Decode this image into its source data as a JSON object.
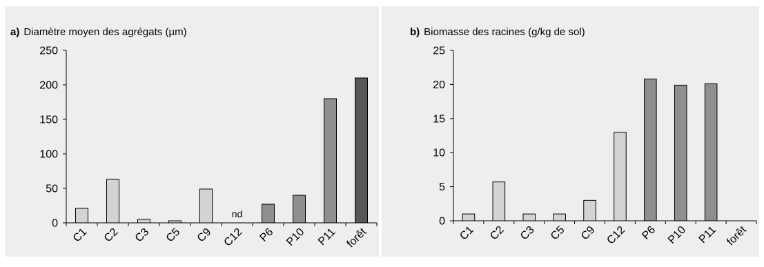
{
  "colors": {
    "panel_background": "#eeeeee",
    "bar_light": "#d3d3d3",
    "bar_medium": "#8f8f8f",
    "bar_dark": "#585858",
    "axis": "#000000"
  },
  "chart_data": [
    {
      "type": "bar",
      "panel_label": "a)",
      "title": "Diamètre moyen des agrégats (µm)",
      "categories": [
        "C1",
        "C2",
        "C3",
        "C5",
        "C9",
        "C12",
        "P6",
        "P10",
        "P11",
        "forêt"
      ],
      "values": [
        21,
        63,
        5,
        3,
        49,
        null,
        27,
        40,
        180,
        210
      ],
      "bar_shades": [
        "light",
        "light",
        "light",
        "light",
        "light",
        "light",
        "medium",
        "medium",
        "medium",
        "dark"
      ],
      "annotations": [
        {
          "category": "C12",
          "text": "nd"
        }
      ],
      "ylim": [
        0,
        250
      ],
      "yticks": [
        0,
        50,
        100,
        150,
        200,
        250
      ],
      "grid": false,
      "xlabel": "",
      "ylabel": ""
    },
    {
      "type": "bar",
      "panel_label": "b)",
      "title": "Biomasse des racines (g/kg de sol)",
      "categories": [
        "C1",
        "C2",
        "C3",
        "C5",
        "C9",
        "C12",
        "P6",
        "P10",
        "P11",
        "forêt"
      ],
      "values": [
        1,
        5.7,
        1,
        1,
        3,
        13,
        20.8,
        19.9,
        20.1,
        null
      ],
      "bar_shades": [
        "light",
        "light",
        "light",
        "light",
        "light",
        "light",
        "medium",
        "medium",
        "medium",
        "dark"
      ],
      "annotations": [],
      "ylim": [
        0,
        25
      ],
      "yticks": [
        0,
        5,
        10,
        15,
        20,
        25
      ],
      "grid": false,
      "xlabel": "",
      "ylabel": ""
    }
  ]
}
